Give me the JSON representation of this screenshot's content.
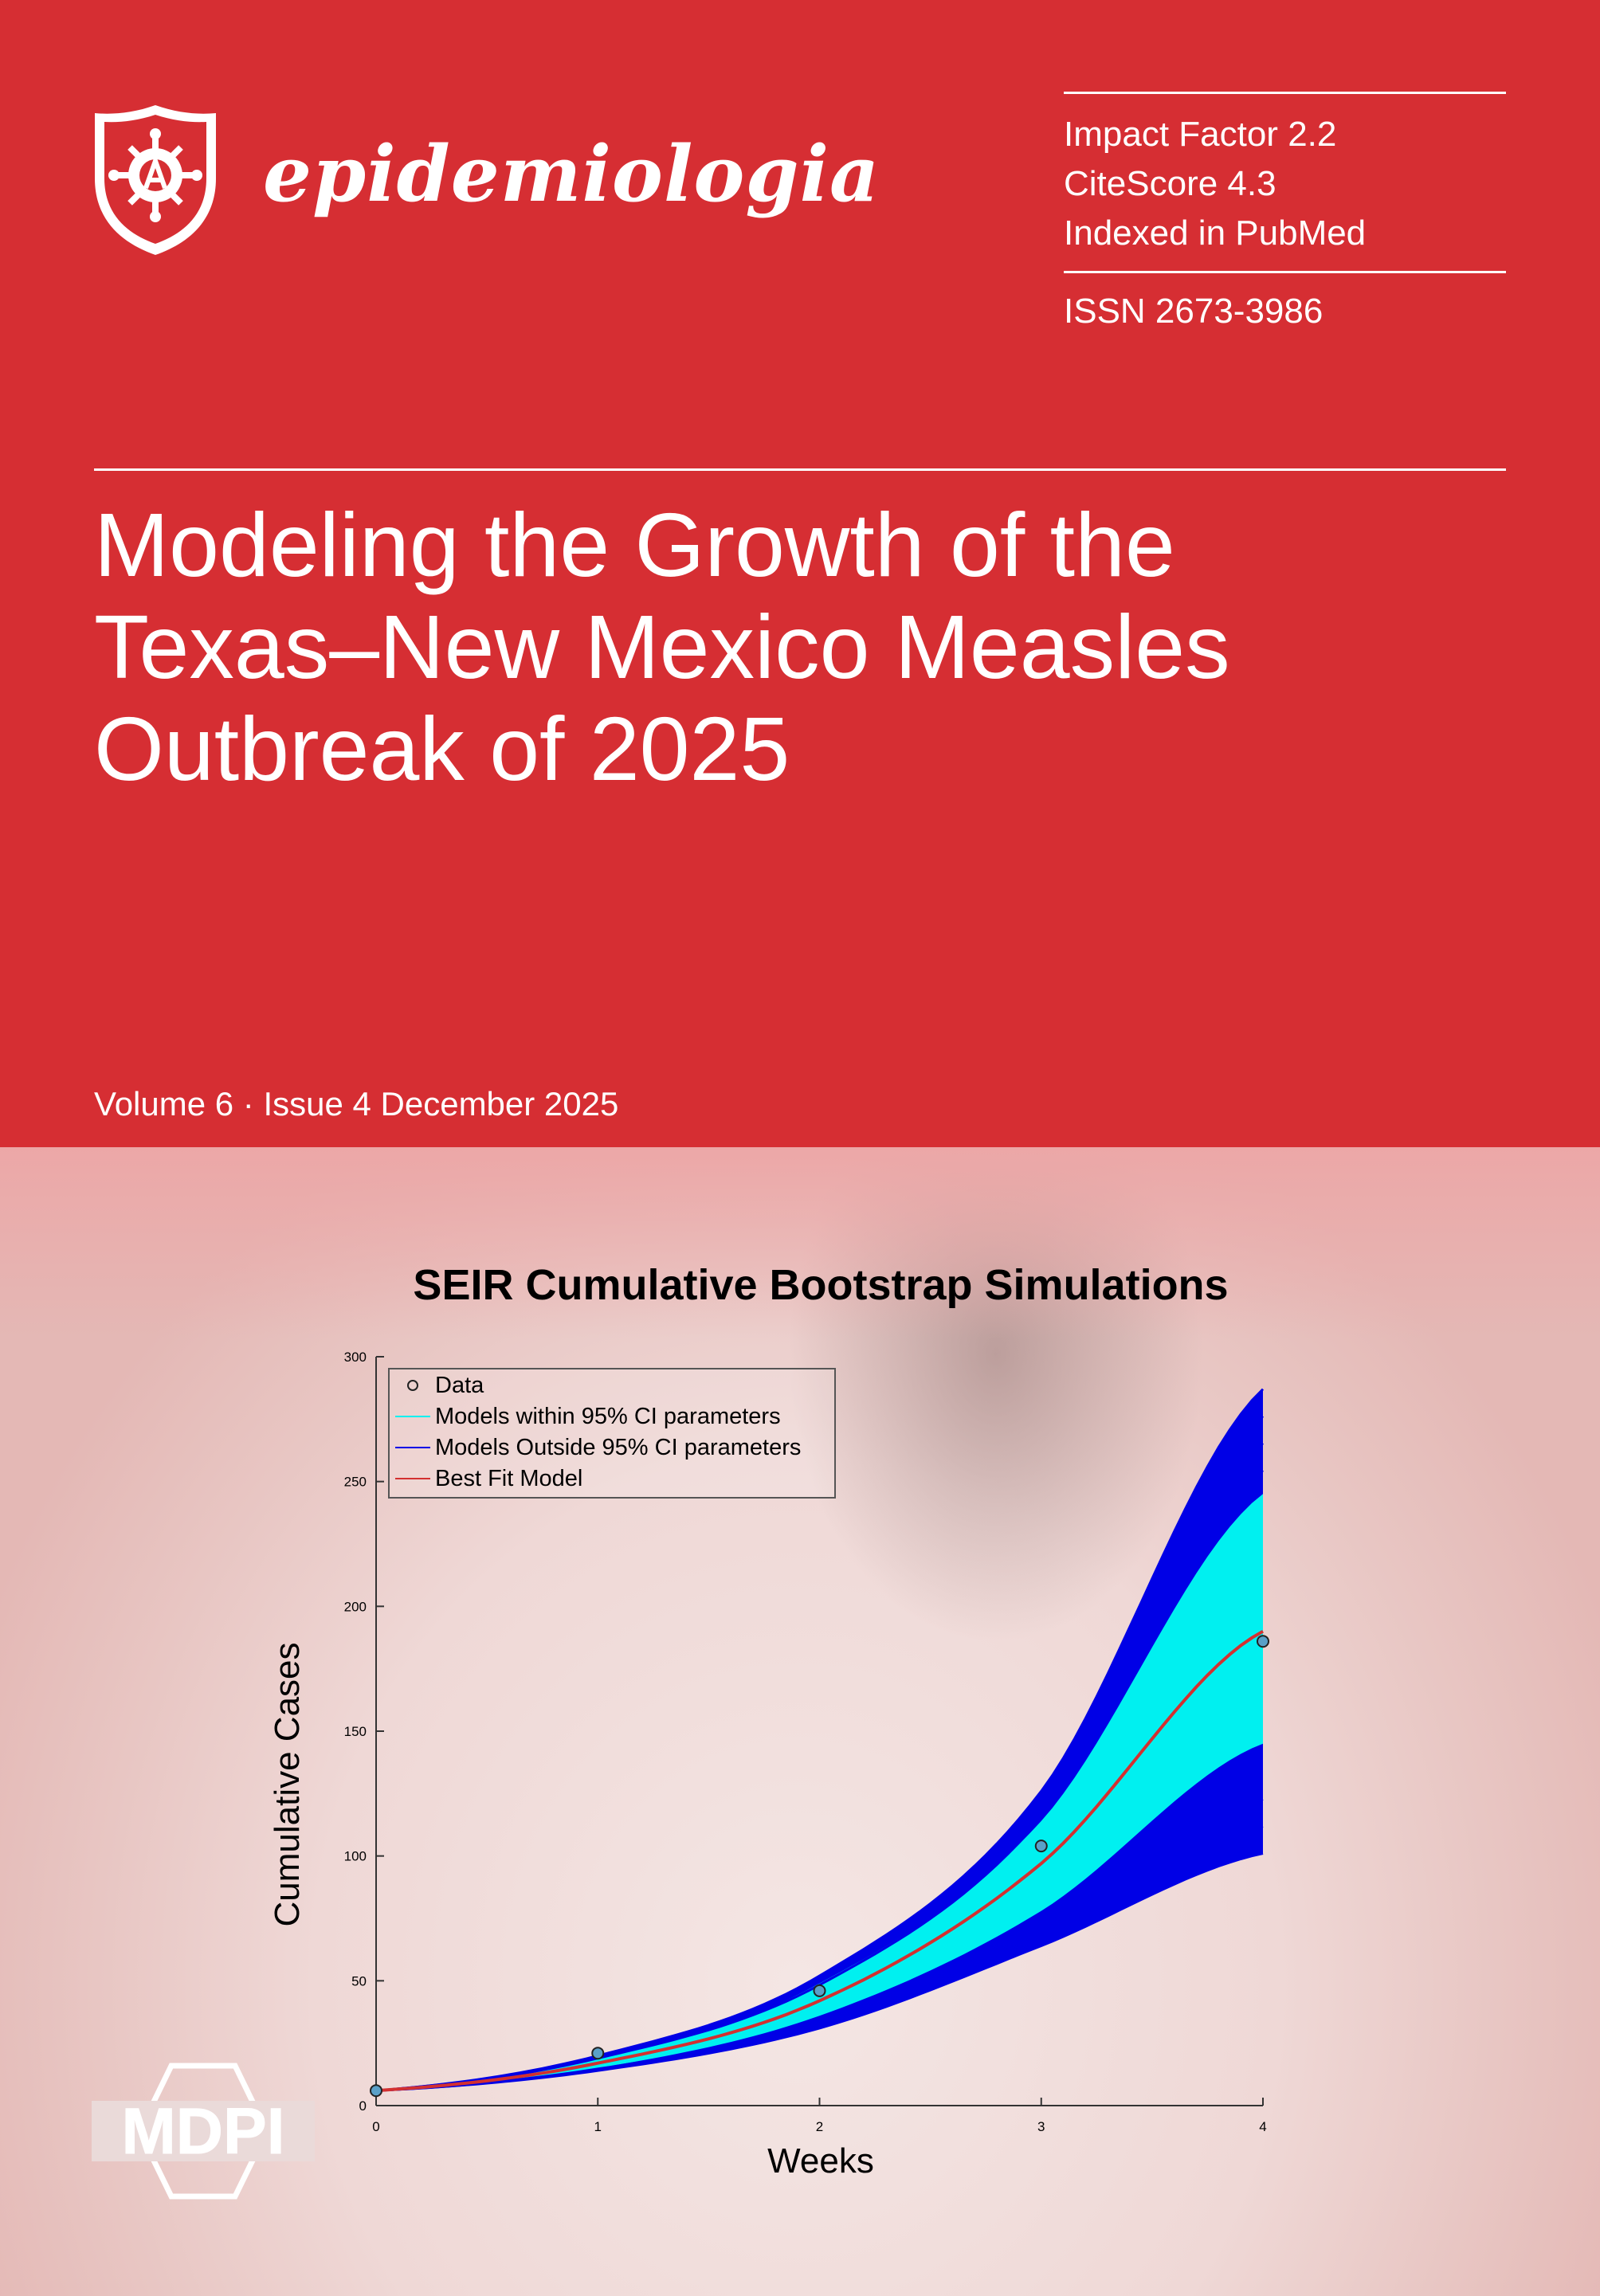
{
  "journal": {
    "name": "epidemiologia"
  },
  "metrics": [
    "Impact Factor 2.2",
    "CiteScore 4.3",
    "Indexed in PubMed"
  ],
  "issn": "ISSN 2673-3986",
  "title_lines": [
    "Modeling the Growth of the",
    "Texas–New Mexico Measles",
    "Outbreak of 2025"
  ],
  "volume": "Volume 6 · Issue 4 December 2025",
  "publisher": "MDPI",
  "colors": {
    "cover_red": "#d62e33",
    "cyan": "#00f0f0",
    "blue": "#0000e6",
    "red": "#d33030"
  },
  "chart_data": {
    "type": "line",
    "title": "SEIR Cumulative Bootstrap Simulations",
    "xlabel": "Weeks",
    "ylabel": "Cumulative Cases",
    "xlim": [
      0,
      4
    ],
    "ylim": [
      0,
      300
    ],
    "xticks": [
      "0",
      "1",
      "2",
      "3",
      "4"
    ],
    "yticks": [
      "0",
      "50",
      "100",
      "150",
      "200",
      "250",
      "300"
    ],
    "legend": {
      "placement": "top-left",
      "entries": [
        "Data",
        "Models within 95% CI parameters",
        "Models Outside 95% CI parameters",
        "Best Fit Model"
      ]
    },
    "data_points": {
      "name": "Data",
      "x": [
        0,
        1,
        2,
        3,
        4
      ],
      "y": [
        6,
        21,
        46,
        104,
        186
      ]
    },
    "best_fit": {
      "name": "Best Fit Model",
      "x": [
        0,
        1,
        2,
        3,
        4
      ],
      "y": [
        6,
        17,
        42,
        97,
        190
      ]
    },
    "ci_band": {
      "name": "Models within 95% CI parameters",
      "x": [
        0,
        1,
        2,
        3,
        4
      ],
      "lower": [
        6,
        15,
        36,
        78,
        145
      ],
      "upper": [
        6,
        19,
        49,
        114,
        245
      ]
    },
    "outside_band": {
      "name": "Models Outside 95% CI parameters",
      "x": [
        0,
        1,
        2,
        3,
        4
      ],
      "lower": [
        6,
        14,
        31,
        64,
        101
      ],
      "upper": [
        6,
        20,
        52,
        126,
        287
      ]
    }
  }
}
